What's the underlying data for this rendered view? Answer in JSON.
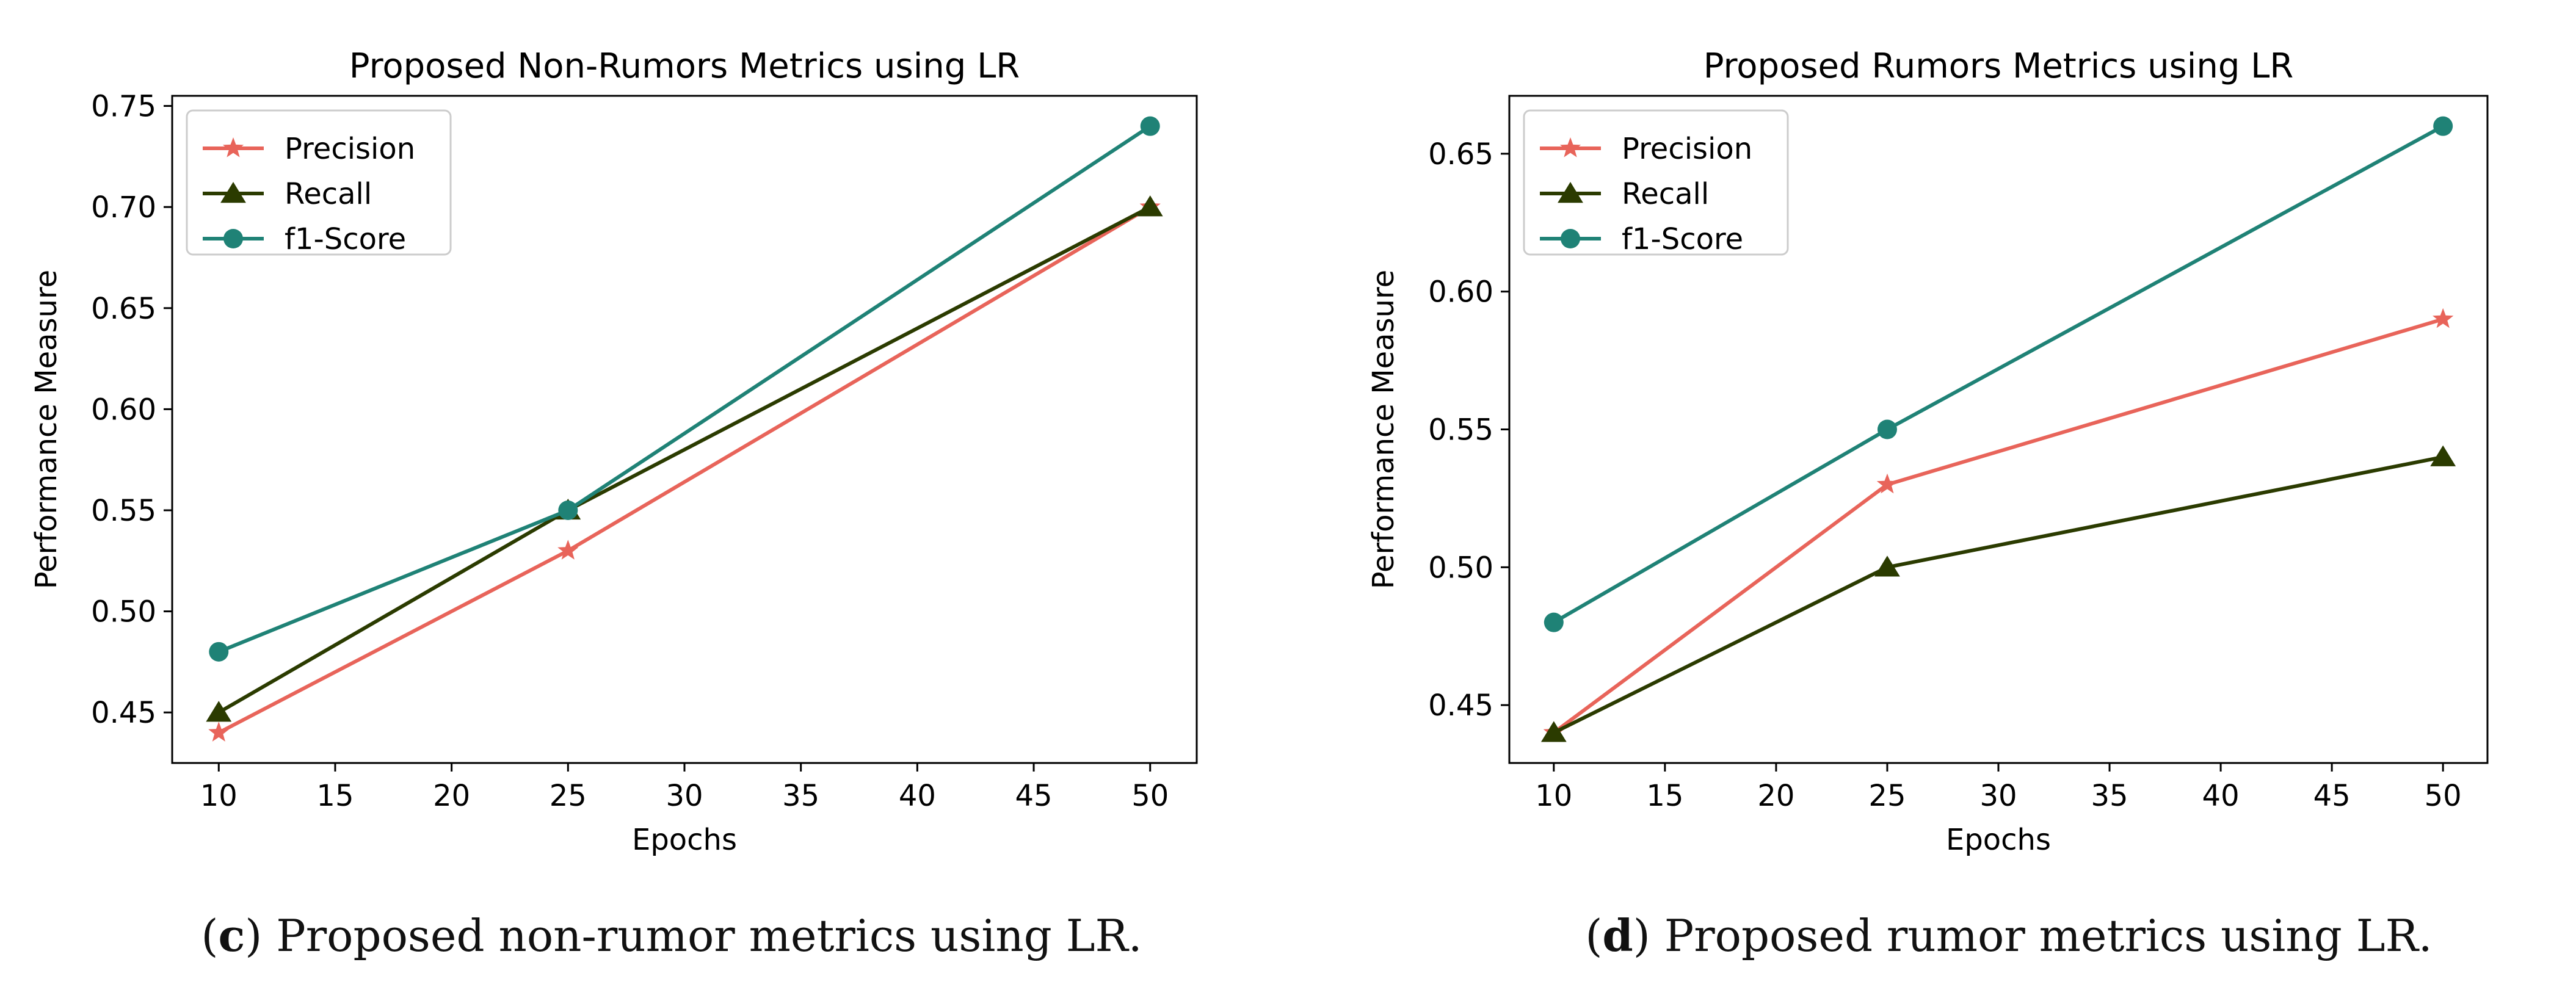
{
  "chart_data": [
    {
      "type": "line",
      "title": "Proposed Non-Rumors Metrics using LR",
      "xlabel": "Epochs",
      "ylabel": "Performance Measure",
      "x": [
        10,
        25,
        50
      ],
      "xlim": [
        8,
        52
      ],
      "ylim": [
        0.425,
        0.755
      ],
      "xticks": [
        10,
        15,
        20,
        25,
        30,
        35,
        40,
        45,
        50
      ],
      "yticks": [
        0.45,
        0.5,
        0.55,
        0.6,
        0.65,
        0.7,
        0.75
      ],
      "ytick_labels": [
        "0.45",
        "0.50",
        "0.55",
        "0.60",
        "0.65",
        "0.70",
        "0.75"
      ],
      "legend_position": "top-left",
      "series": [
        {
          "name": "Precision",
          "values": [
            0.44,
            0.53,
            0.7
          ],
          "color": "#e8645a",
          "marker": "star"
        },
        {
          "name": "Recall",
          "values": [
            0.45,
            0.55,
            0.7
          ],
          "color": "#2b3b00",
          "marker": "triangle"
        },
        {
          "name": "f1-Score",
          "values": [
            0.48,
            0.55,
            0.74
          ],
          "color": "#1f8276",
          "marker": "circle"
        }
      ]
    },
    {
      "type": "line",
      "title": "Proposed Rumors Metrics using LR",
      "xlabel": "Epochs",
      "ylabel": "Performance Measure",
      "x": [
        10,
        25,
        50
      ],
      "xlim": [
        8,
        52
      ],
      "ylim": [
        0.429,
        0.671
      ],
      "xticks": [
        10,
        15,
        20,
        25,
        30,
        35,
        40,
        45,
        50
      ],
      "yticks": [
        0.45,
        0.5,
        0.55,
        0.6,
        0.65
      ],
      "ytick_labels": [
        "0.45",
        "0.50",
        "0.55",
        "0.60",
        "0.65"
      ],
      "legend_position": "top-left",
      "series": [
        {
          "name": "Precision",
          "values": [
            0.44,
            0.53,
            0.59
          ],
          "color": "#e8645a",
          "marker": "star"
        },
        {
          "name": "Recall",
          "values": [
            0.44,
            0.5,
            0.54
          ],
          "color": "#2b3b00",
          "marker": "triangle"
        },
        {
          "name": "f1-Score",
          "values": [
            0.48,
            0.55,
            0.66
          ],
          "color": "#1f8276",
          "marker": "circle"
        }
      ]
    }
  ],
  "captions": [
    {
      "letter": "c",
      "text": ") Proposed non-rumor metrics using LR.",
      "open": "("
    },
    {
      "letter": "d",
      "text": ") Proposed rumor metrics using LR.",
      "open": "("
    }
  ]
}
